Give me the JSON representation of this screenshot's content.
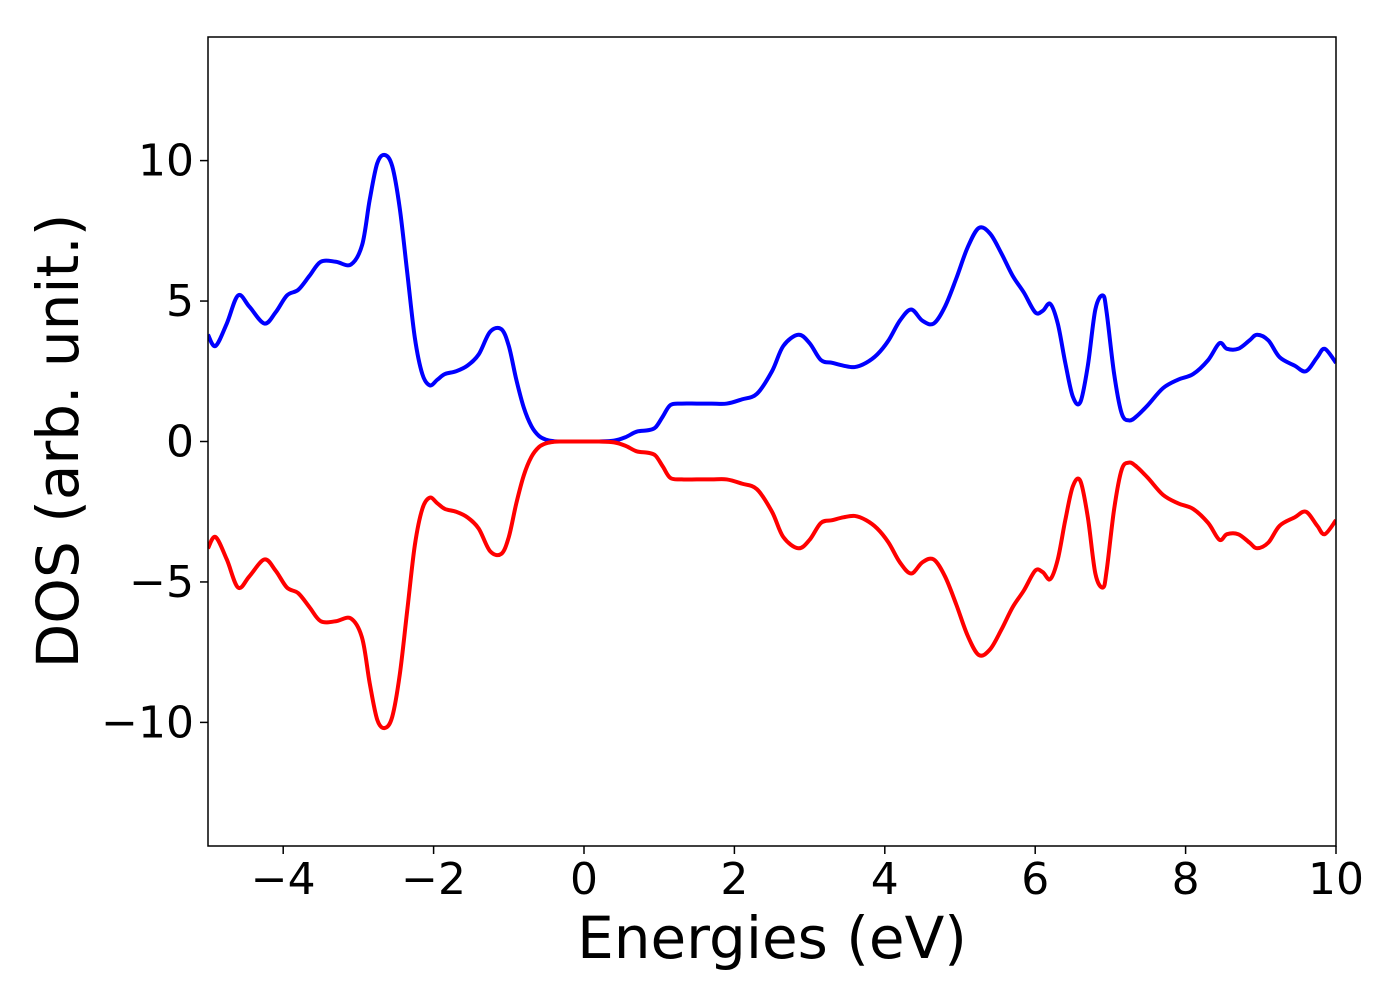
{
  "chart_data": {
    "type": "line",
    "xlabel": "Energies (eV)",
    "ylabel": "DOS (arb. unit.)",
    "xlim": [
      -5,
      10
    ],
    "ylim": [
      -14.4,
      14.4
    ],
    "xticks": [
      -4,
      -2,
      0,
      2,
      4,
      6,
      8,
      10
    ],
    "xtick_labels": [
      "−4",
      "−2",
      "0",
      "2",
      "4",
      "6",
      "8",
      "10"
    ],
    "yticks": [
      -10,
      -5,
      0,
      5,
      10
    ],
    "ytick_labels": [
      "−10",
      "−5",
      "0",
      "5",
      "10"
    ],
    "grid": false,
    "series": [
      {
        "color": "#0000ff",
        "x": [
          -5,
          -4.9,
          -4.75,
          -4.6,
          -4.45,
          -4.25,
          -4.1,
          -3.95,
          -3.8,
          -3.65,
          -3.5,
          -3.3,
          -3.1,
          -2.95,
          -2.85,
          -2.75,
          -2.65,
          -2.55,
          -2.45,
          -2.35,
          -2.25,
          -2.15,
          -2.05,
          -1.95,
          -1.85,
          -1.7,
          -1.55,
          -1.4,
          -1.25,
          -1.1,
          -1.0,
          -0.9,
          -0.8,
          -0.7,
          -0.6,
          -0.5,
          -0.4,
          -0.3,
          -0.2,
          0,
          0.2,
          0.4,
          0.55,
          0.7,
          0.85,
          0.95,
          1.05,
          1.15,
          1.3,
          1.5,
          1.7,
          1.9,
          2.1,
          2.3,
          2.5,
          2.65,
          2.85,
          3.0,
          3.15,
          3.3,
          3.45,
          3.6,
          3.75,
          3.9,
          4.05,
          4.2,
          4.35,
          4.5,
          4.65,
          4.8,
          4.95,
          5.1,
          5.25,
          5.4,
          5.55,
          5.7,
          5.85,
          6.0,
          6.1,
          6.2,
          6.3,
          6.4,
          6.5,
          6.6,
          6.7,
          6.8,
          6.9,
          6.95,
          7.05,
          7.15,
          7.25,
          7.35,
          7.5,
          7.7,
          7.9,
          8.1,
          8.3,
          8.45,
          8.55,
          8.7,
          8.85,
          8.95,
          9.1,
          9.25,
          9.45,
          9.6,
          9.75,
          9.85,
          10
        ],
        "y": [
          3.8,
          3.4,
          4.2,
          5.2,
          4.8,
          4.2,
          4.6,
          5.2,
          5.4,
          5.9,
          6.4,
          6.4,
          6.3,
          7.0,
          8.6,
          9.9,
          10.2,
          9.8,
          8.3,
          6.0,
          3.7,
          2.4,
          2.0,
          2.2,
          2.4,
          2.5,
          2.7,
          3.1,
          3.9,
          4.0,
          3.4,
          2.2,
          1.2,
          0.55,
          0.2,
          0.06,
          0.01,
          0.0,
          0.0,
          0.0,
          0.0,
          0.03,
          0.15,
          0.35,
          0.4,
          0.5,
          0.9,
          1.3,
          1.35,
          1.35,
          1.35,
          1.35,
          1.5,
          1.7,
          2.5,
          3.4,
          3.8,
          3.5,
          2.9,
          2.8,
          2.7,
          2.65,
          2.8,
          3.1,
          3.6,
          4.3,
          4.7,
          4.3,
          4.2,
          4.8,
          5.8,
          6.9,
          7.6,
          7.4,
          6.7,
          5.9,
          5.3,
          4.6,
          4.65,
          4.9,
          4.2,
          2.8,
          1.6,
          1.4,
          2.7,
          4.7,
          5.2,
          4.6,
          2.4,
          1.0,
          0.75,
          0.9,
          1.3,
          1.9,
          2.2,
          2.4,
          2.9,
          3.5,
          3.3,
          3.3,
          3.6,
          3.8,
          3.6,
          3.0,
          2.7,
          2.5,
          3.0,
          3.3,
          2.8
        ]
      },
      {
        "color": "#ff0000",
        "x": [
          -5,
          -4.9,
          -4.75,
          -4.6,
          -4.45,
          -4.25,
          -4.1,
          -3.95,
          -3.8,
          -3.65,
          -3.5,
          -3.3,
          -3.1,
          -2.95,
          -2.85,
          -2.75,
          -2.65,
          -2.55,
          -2.45,
          -2.35,
          -2.25,
          -2.15,
          -2.05,
          -1.95,
          -1.85,
          -1.7,
          -1.55,
          -1.4,
          -1.25,
          -1.1,
          -1.0,
          -0.9,
          -0.8,
          -0.7,
          -0.6,
          -0.5,
          -0.4,
          -0.3,
          -0.2,
          0,
          0.2,
          0.4,
          0.55,
          0.7,
          0.85,
          0.95,
          1.05,
          1.15,
          1.3,
          1.5,
          1.7,
          1.9,
          2.1,
          2.3,
          2.5,
          2.65,
          2.85,
          3.0,
          3.15,
          3.3,
          3.45,
          3.6,
          3.75,
          3.9,
          4.05,
          4.2,
          4.35,
          4.5,
          4.65,
          4.8,
          4.95,
          5.1,
          5.25,
          5.4,
          5.55,
          5.7,
          5.85,
          6.0,
          6.1,
          6.2,
          6.3,
          6.4,
          6.5,
          6.6,
          6.7,
          6.8,
          6.9,
          6.95,
          7.05,
          7.15,
          7.25,
          7.35,
          7.5,
          7.7,
          7.9,
          8.1,
          8.3,
          8.45,
          8.55,
          8.7,
          8.85,
          8.95,
          9.1,
          9.25,
          9.45,
          9.6,
          9.75,
          9.85,
          10
        ],
        "y": [
          -3.8,
          -3.4,
          -4.2,
          -5.2,
          -4.8,
          -4.2,
          -4.6,
          -5.2,
          -5.4,
          -5.9,
          -6.4,
          -6.4,
          -6.3,
          -7.0,
          -8.6,
          -9.9,
          -10.2,
          -9.8,
          -8.3,
          -6.0,
          -3.7,
          -2.4,
          -2.0,
          -2.2,
          -2.4,
          -2.5,
          -2.7,
          -3.1,
          -3.9,
          -4.0,
          -3.4,
          -2.2,
          -1.2,
          -0.55,
          -0.2,
          -0.06,
          -0.01,
          0.0,
          0.0,
          0.0,
          0.0,
          -0.03,
          -0.15,
          -0.35,
          -0.4,
          -0.5,
          -0.9,
          -1.3,
          -1.35,
          -1.35,
          -1.35,
          -1.35,
          -1.5,
          -1.7,
          -2.5,
          -3.4,
          -3.8,
          -3.5,
          -2.9,
          -2.8,
          -2.7,
          -2.65,
          -2.8,
          -3.1,
          -3.6,
          -4.3,
          -4.7,
          -4.3,
          -4.2,
          -4.8,
          -5.8,
          -6.9,
          -7.6,
          -7.4,
          -6.7,
          -5.9,
          -5.3,
          -4.6,
          -4.65,
          -4.9,
          -4.2,
          -2.8,
          -1.6,
          -1.4,
          -2.7,
          -4.7,
          -5.2,
          -4.6,
          -2.4,
          -1.0,
          -0.75,
          -0.9,
          -1.3,
          -1.9,
          -2.2,
          -2.4,
          -2.9,
          -3.5,
          -3.3,
          -3.3,
          -3.6,
          -3.8,
          -3.6,
          -3.0,
          -2.7,
          -2.5,
          -3.0,
          -3.3,
          -2.8
        ]
      }
    ]
  }
}
